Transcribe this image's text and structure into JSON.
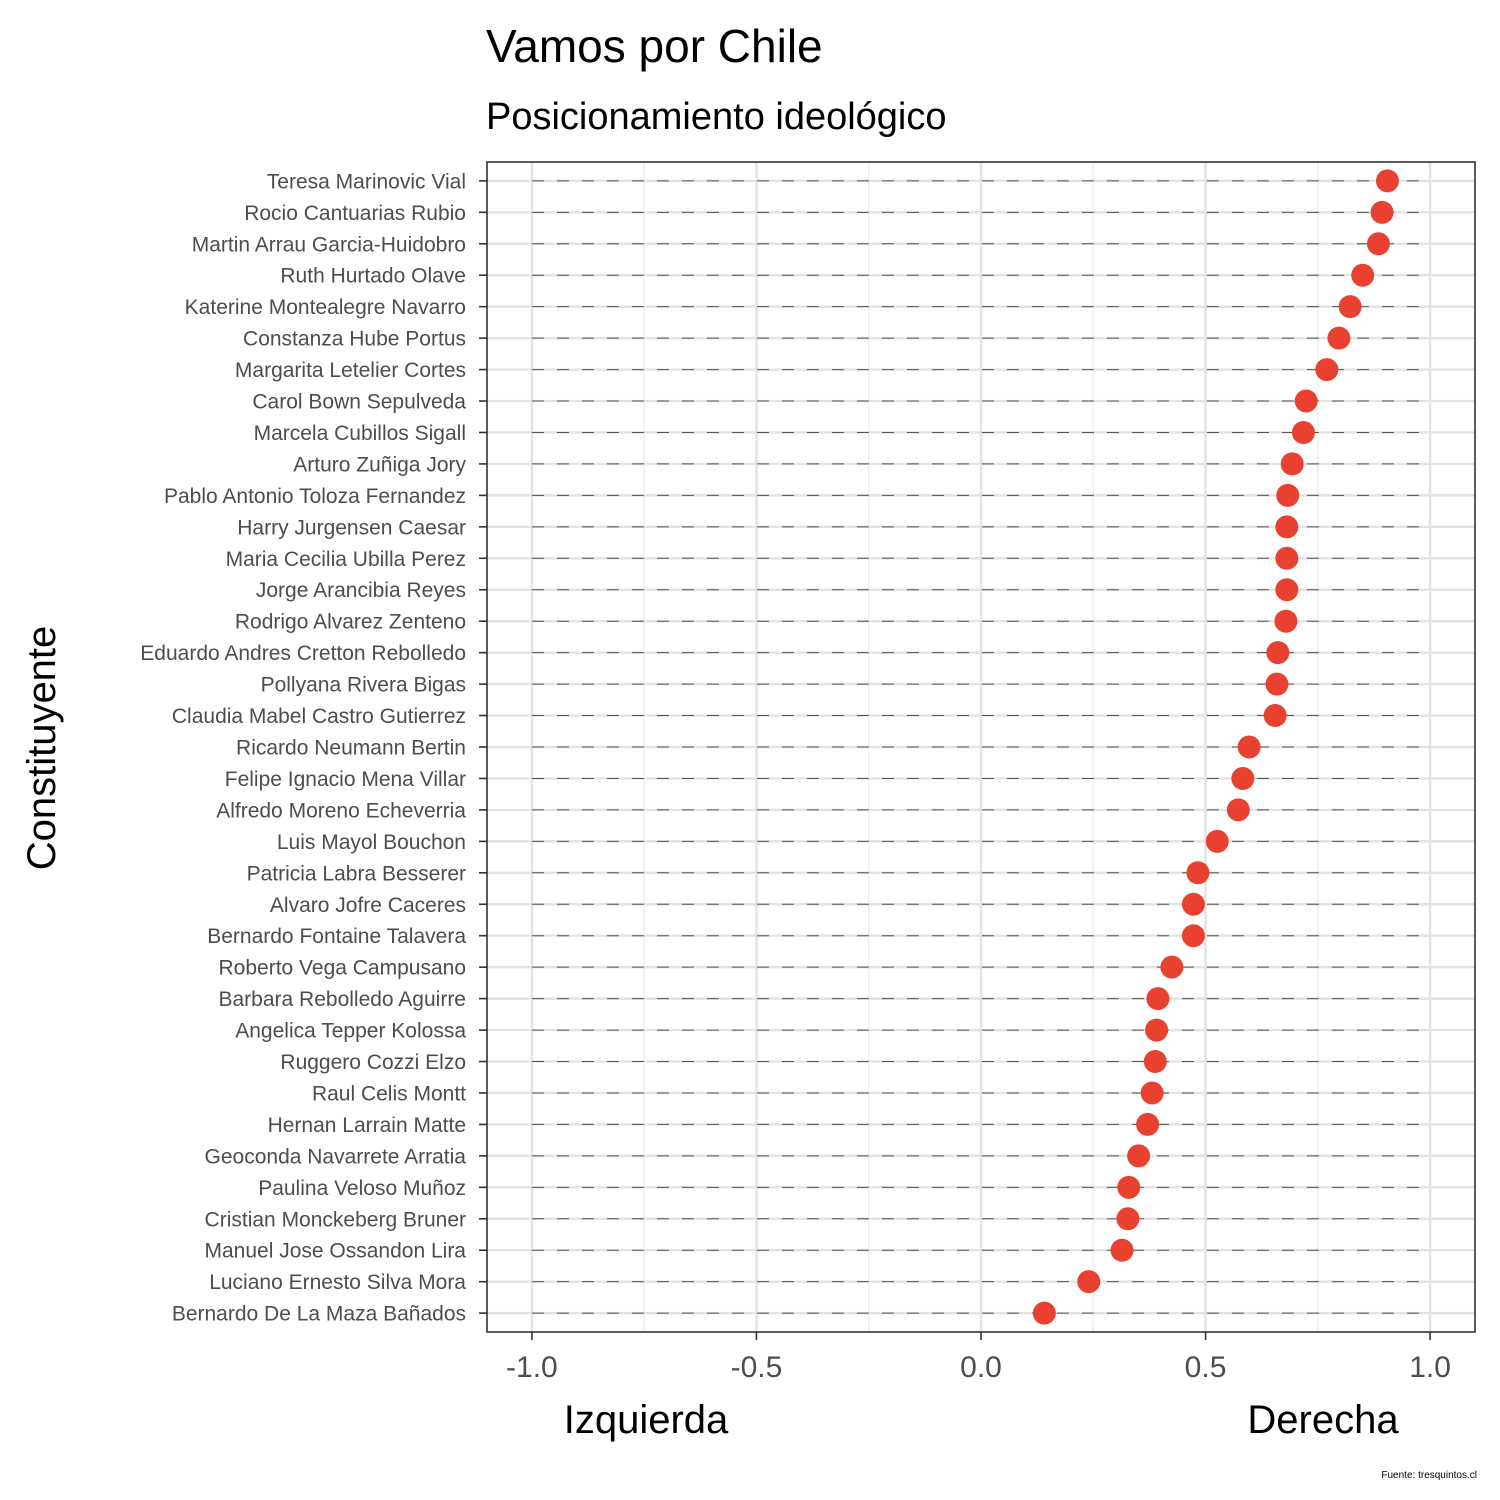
{
  "chart_data": {
    "type": "scatter",
    "title": "Vamos por Chile",
    "subtitle": "Posicionamiento ideológico",
    "ylabel": "Constituyente",
    "xlabel_left": "Izquierda",
    "xlabel_right": "Derecha",
    "caption": "Fuente: tresquintos.cl",
    "xlim": [
      -1.1,
      1.1
    ],
    "x_ticks": [
      -1.0,
      -0.5,
      0.0,
      0.5,
      1.0
    ],
    "x_tick_labels": [
      "-1.0",
      "-0.5",
      "0.0",
      "0.5",
      "1.0"
    ],
    "grid": true,
    "point_color": "#E8412F",
    "categories": [
      "Teresa Marinovic Vial",
      "Rocio Cantuarias Rubio",
      "Martin Arrau Garcia-Huidobro",
      "Ruth Hurtado Olave",
      "Katerine Montealegre Navarro",
      "Constanza Hube Portus",
      "Margarita Letelier Cortes",
      "Carol Bown Sepulveda",
      "Marcela Cubillos Sigall",
      "Arturo Zuñiga Jory",
      "Pablo Antonio Toloza Fernandez",
      "Harry Jurgensen Caesar",
      "Maria Cecilia Ubilla Perez",
      "Jorge Arancibia Reyes",
      "Rodrigo Alvarez Zenteno",
      "Eduardo Andres Cretton Rebolledo",
      "Pollyana Rivera Bigas",
      "Claudia Mabel Castro Gutierrez",
      "Ricardo Neumann Bertin",
      "Felipe Ignacio Mena Villar",
      "Alfredo Moreno Echeverria",
      "Luis Mayol Bouchon",
      "Patricia Labra Besserer",
      "Alvaro Jofre Caceres",
      "Bernardo Fontaine Talavera",
      "Roberto Vega Campusano",
      "Barbara Rebolledo Aguirre",
      "Angelica Tepper Kolossa",
      "Ruggero Cozzi Elzo",
      "Raul Celis Montt",
      "Hernan Larrain Matte",
      "Geoconda Navarrete Arratia",
      "Paulina Veloso Muñoz",
      "Cristian Monckeberg Bruner",
      "Manuel Jose Ossandon Lira",
      "Luciano Ernesto Silva Mora",
      "Bernardo De La Maza Bañados"
    ],
    "values": [
      0.905,
      0.893,
      0.885,
      0.85,
      0.822,
      0.797,
      0.77,
      0.724,
      0.718,
      0.693,
      0.683,
      0.681,
      0.681,
      0.681,
      0.679,
      0.661,
      0.659,
      0.655,
      0.597,
      0.583,
      0.573,
      0.526,
      0.483,
      0.473,
      0.473,
      0.425,
      0.394,
      0.391,
      0.388,
      0.381,
      0.371,
      0.351,
      0.329,
      0.327,
      0.314,
      0.24,
      0.141
    ]
  }
}
